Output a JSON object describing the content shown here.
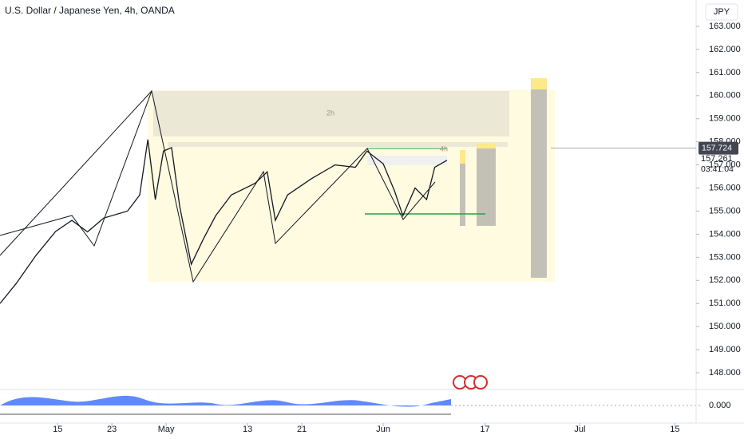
{
  "chart_data": {
    "type": "line",
    "title": "U.S. Dollar / Japanese Yen, 4h, OANDA",
    "currency": "JPY",
    "color": "#131722",
    "x": [
      5.5,
      7.9,
      10.8,
      13.7,
      16.1,
      18.4,
      20.8,
      24.3,
      26.1,
      27.3,
      28.4,
      29.6,
      30.8,
      32,
      33.7,
      35.5,
      37.3,
      39.6,
      43.1,
      44.9,
      46.1,
      47.9,
      51.4,
      54.9,
      57.9,
      59.6,
      62,
      63.7,
      64.9,
      66.7,
      68.4,
      69.6,
      71.4
    ],
    "values": [
      151.0,
      151.87,
      153.08,
      154.12,
      154.6,
      154.1,
      154.7,
      155.0,
      155.7,
      158.1,
      155.5,
      157.6,
      157.75,
      155.2,
      152.7,
      153.8,
      154.8,
      155.7,
      156.2,
      156.7,
      154.6,
      155.7,
      156.4,
      157.0,
      156.9,
      157.6,
      157.05,
      155.85,
      154.8,
      156.0,
      155.5,
      156.9,
      157.2
    ],
    "xlim": [
      5.5,
      107.9
    ],
    "xticks": [
      {
        "value": 14,
        "label": "15"
      },
      {
        "value": 22,
        "label": "23"
      },
      {
        "value": 30,
        "label": "May"
      },
      {
        "value": 42,
        "label": "13"
      },
      {
        "value": 50,
        "label": "21"
      },
      {
        "value": 62,
        "label": "Jun"
      },
      {
        "value": 77,
        "label": "17"
      },
      {
        "value": 91,
        "label": "Jul"
      },
      {
        "value": 105,
        "label": "15"
      }
    ],
    "ylim": [
      147.38,
      164.14
    ],
    "yticks": [
      {
        "value": 148,
        "label": "148.000"
      },
      {
        "value": 149,
        "label": "149.000"
      },
      {
        "value": 150,
        "label": "150.000"
      },
      {
        "value": 151,
        "label": "151.000"
      },
      {
        "value": 152,
        "label": "152.000"
      },
      {
        "value": 153,
        "label": "153.000"
      },
      {
        "value": 154,
        "label": "154.000"
      },
      {
        "value": 155,
        "label": "155.000"
      },
      {
        "value": 156,
        "label": "156.000"
      },
      {
        "value": 157,
        "label": "157.000"
      },
      {
        "value": 158,
        "label": "158.000"
      },
      {
        "value": 159,
        "label": "159.000"
      },
      {
        "value": 160,
        "label": "160.000"
      },
      {
        "value": 161,
        "label": "161.000"
      },
      {
        "value": 162,
        "label": "162.000"
      },
      {
        "value": 163,
        "label": "163.000"
      }
    ],
    "last_price": 157.724,
    "current_price": 157.261,
    "countdown": "03:41:04",
    "zone_labels": [
      "2h",
      "4h"
    ],
    "oscillator_tick": {
      "value": 0,
      "label": "0.000"
    }
  }
}
